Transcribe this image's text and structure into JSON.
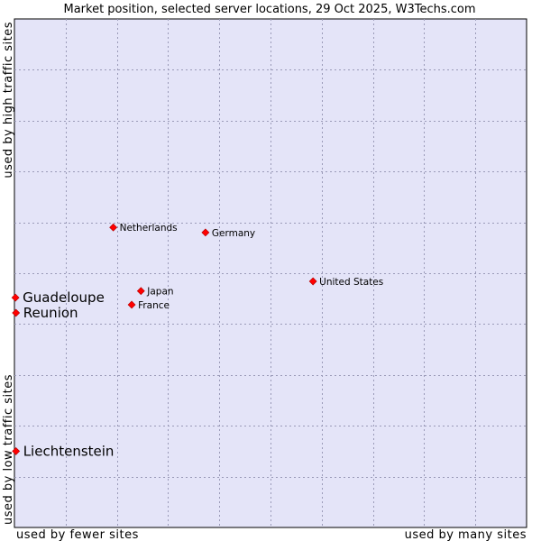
{
  "chart_data": {
    "type": "scatter",
    "title": "Market position, selected server locations, 29 Oct 2025, W3Techs.com",
    "xlabel_left": "used by fewer sites",
    "xlabel_right": "used by many sites",
    "ylabel_bottom": "used by low traffic sites",
    "ylabel_top": "used by high traffic sites",
    "xlim": [
      0,
      100
    ],
    "ylim": [
      0,
      100
    ],
    "grid": true,
    "colors": {
      "plot_background": "#e4e4f8",
      "point": "#ff0000",
      "grid": "#9a9ab8"
    },
    "points": [
      {
        "label": "Netherlands",
        "x": 19.3,
        "y": 59.0,
        "emphasis": false
      },
      {
        "label": "Germany",
        "x": 37.3,
        "y": 58.0,
        "emphasis": false
      },
      {
        "label": "United States",
        "x": 58.3,
        "y": 48.4,
        "emphasis": false
      },
      {
        "label": "Japan",
        "x": 24.7,
        "y": 46.5,
        "emphasis": false
      },
      {
        "label": "France",
        "x": 22.9,
        "y": 43.8,
        "emphasis": false
      },
      {
        "label": "Guadeloupe",
        "x": 0.2,
        "y": 45.2,
        "emphasis": true
      },
      {
        "label": "Reunion",
        "x": 0.3,
        "y": 42.2,
        "emphasis": true
      },
      {
        "label": "Liechtenstein",
        "x": 0.3,
        "y": 15.0,
        "emphasis": true
      }
    ]
  }
}
